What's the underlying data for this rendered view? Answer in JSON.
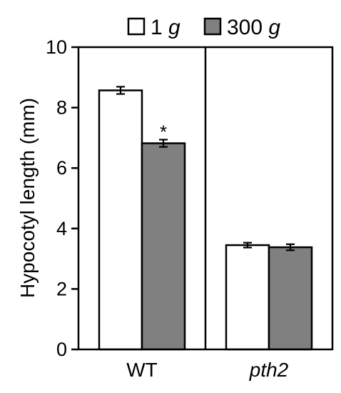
{
  "chart_data": {
    "type": "bar",
    "categories": [
      "WT",
      "pth2"
    ],
    "categories_italic": [
      false,
      true
    ],
    "series": [
      {
        "name": "1 g",
        "values": [
          8.57,
          3.45
        ],
        "errors": [
          0.12,
          0.08
        ],
        "color": "#ffffff"
      },
      {
        "name": "300 g",
        "values": [
          6.82,
          3.38
        ],
        "errors": [
          0.12,
          0.1
        ],
        "color": "#808080"
      }
    ],
    "legend": {
      "items": [
        {
          "number": "1",
          "unit": "g"
        },
        {
          "number": "300",
          "unit": "g"
        }
      ],
      "placement": "top"
    },
    "annotations": [
      {
        "text": "*",
        "category": "WT",
        "series": "300 g"
      }
    ],
    "ylabel": "Hypocotyl length (mm)",
    "xlabel": "",
    "ylim": [
      0,
      10
    ],
    "yticks": [
      0,
      2,
      4,
      6,
      8,
      10
    ],
    "panel_divider": true,
    "grid": false
  }
}
